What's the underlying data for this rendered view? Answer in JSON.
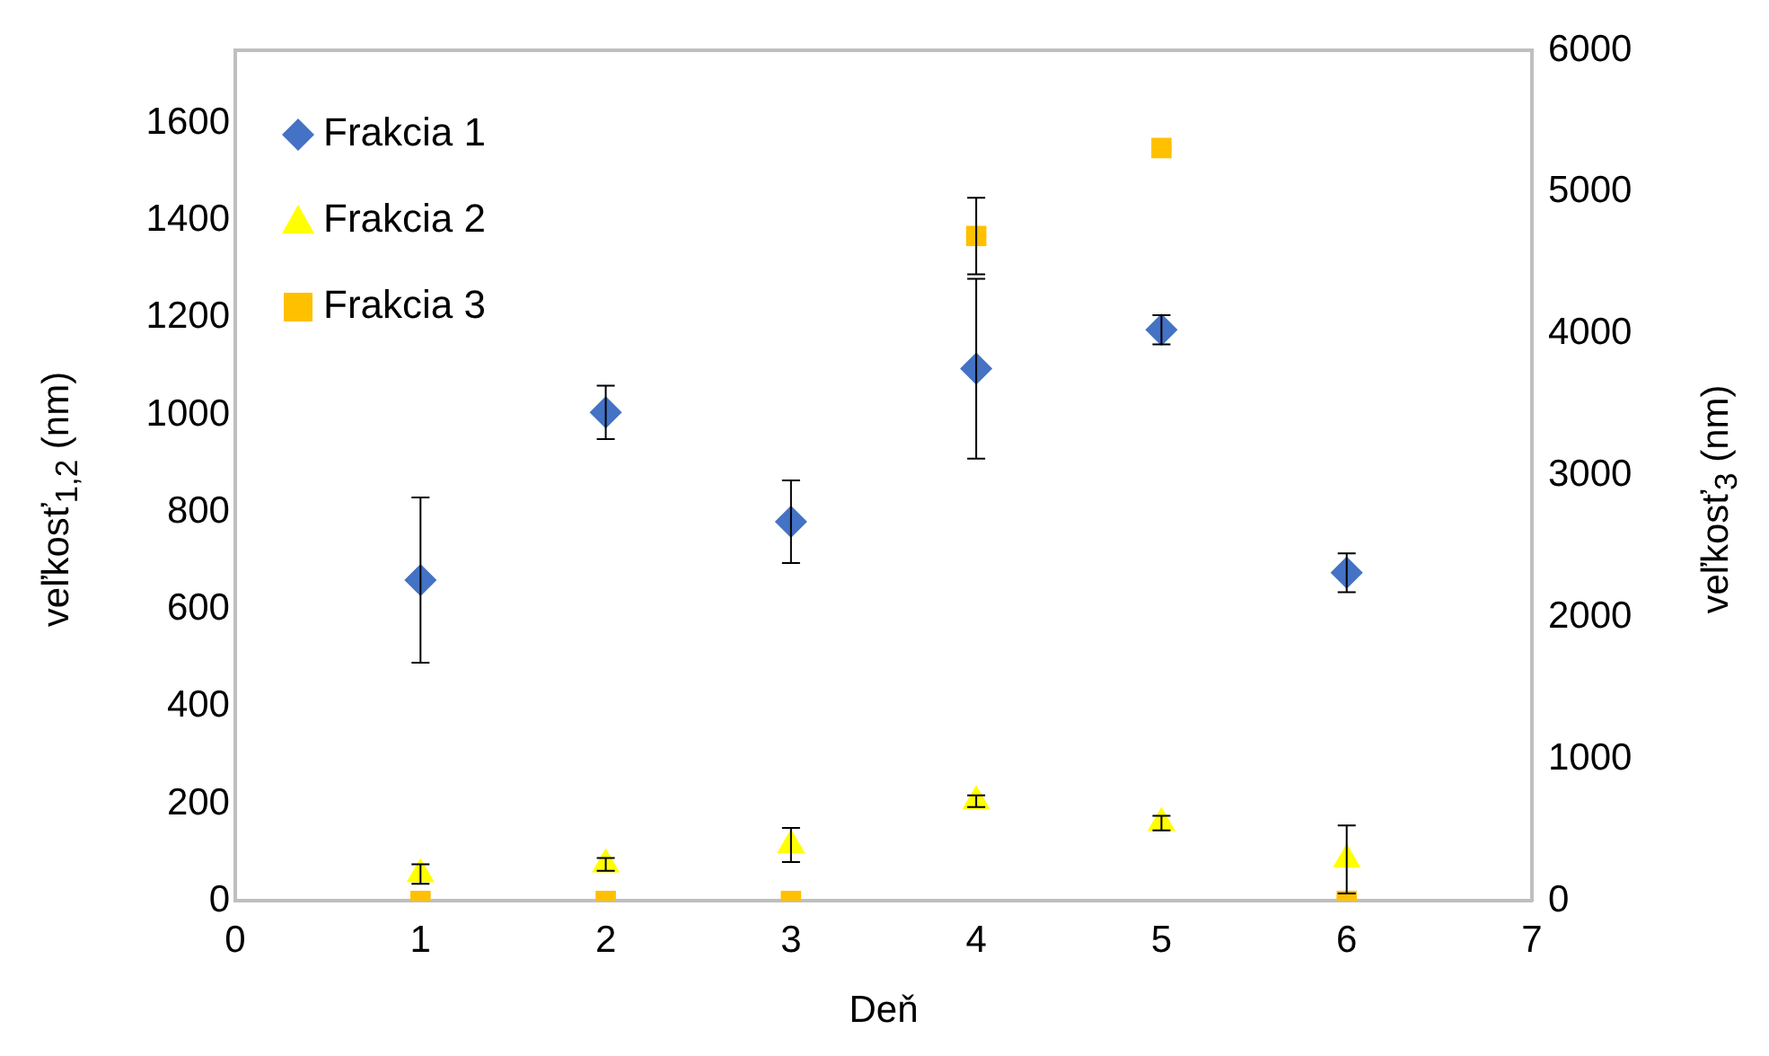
{
  "chart_data": {
    "type": "scatter",
    "xlabel": "Deň",
    "ylabel": "veľkosť$_{1,2}$  (nm)",
    "y2label": "veľkosť$_{3}$ (nm)",
    "x": [
      1,
      2,
      3,
      4,
      5,
      6
    ],
    "xlim": [
      0,
      7
    ],
    "xticks": [
      0,
      1,
      2,
      3,
      4,
      5,
      6,
      7
    ],
    "ylim": [
      0,
      1750
    ],
    "yticks": [
      0,
      200,
      400,
      600,
      800,
      1000,
      1200,
      1400,
      1600
    ],
    "y2lim": [
      0,
      6000
    ],
    "y2ticks": [
      0,
      1000,
      2000,
      3000,
      4000,
      5000,
      6000
    ],
    "legend": "top left",
    "grid": false,
    "series": [
      {
        "name": "Frakcia 1",
        "color": "#4472c4",
        "marker": "diamond",
        "values": [
          660,
          1005,
          780,
          1095,
          1175,
          675
        ],
        "errors": [
          170,
          55,
          85,
          185,
          30,
          40
        ]
      },
      {
        "name": "Frakcia 2",
        "color": "#ffff00",
        "marker": "triangle",
        "values": [
          55,
          75,
          115,
          205,
          160,
          85
        ],
        "errors": [
          20,
          13,
          35,
          12,
          15,
          70
        ]
      },
      {
        "name": "Frakcia 3",
        "color": "#ffc000",
        "marker": "square",
        "axis": "y2",
        "values": [
          0,
          0,
          0,
          4690,
          5310,
          0
        ],
        "errors": [
          null,
          null,
          null,
          270,
          null,
          null
        ]
      }
    ]
  }
}
